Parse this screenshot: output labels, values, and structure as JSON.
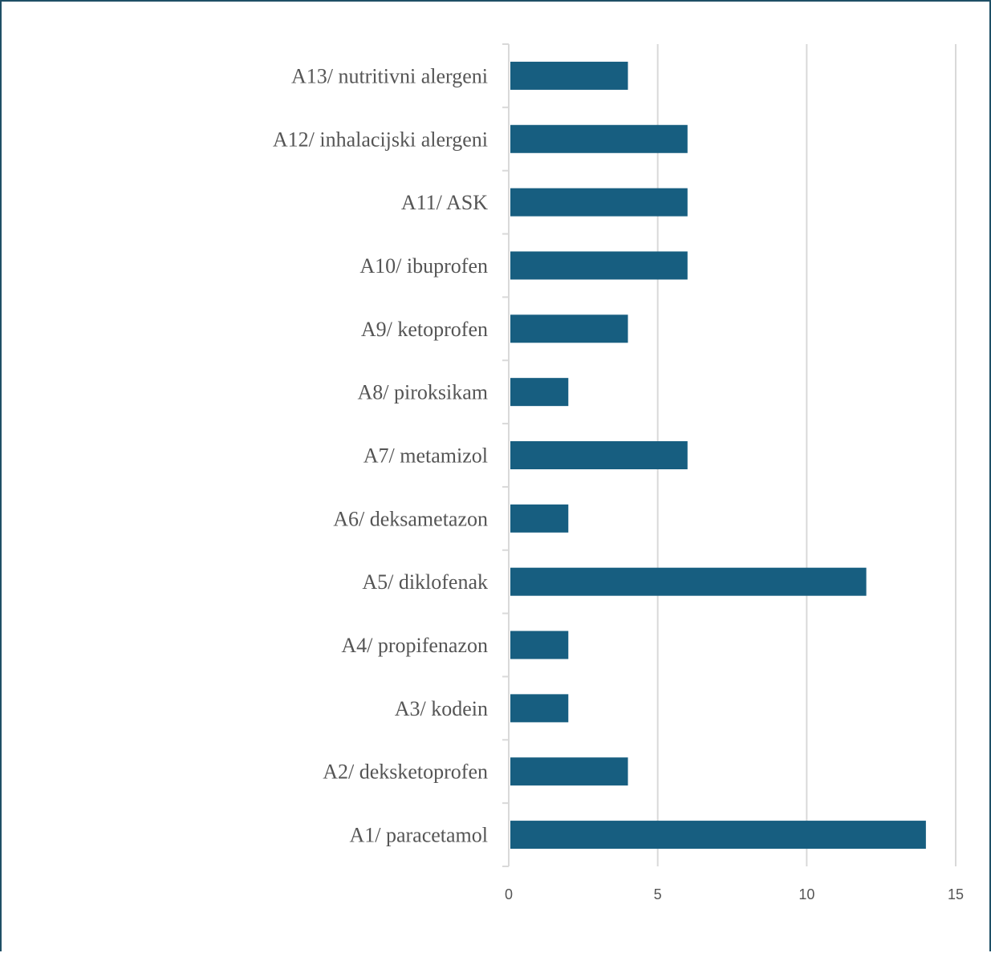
{
  "chart_data": {
    "type": "bar",
    "orientation": "horizontal",
    "title": "",
    "xlabel": "",
    "ylabel": "",
    "categories": [
      "A13/ nutritivni alergeni",
      "A12/ inhalacijski alergeni",
      "A11/ ASK",
      "A10/ ibuprofen",
      "A9/ ketoprofen",
      "A8/ piroksikam",
      "A7/ metamizol",
      "A6/ deksametazon",
      "A5/ diklofenak",
      "A4/ propifenazon",
      "A3/ kodein",
      "A2/ deksketoprofen",
      "A1/ paracetamol"
    ],
    "values": [
      4,
      6,
      6,
      6,
      4,
      2,
      6,
      2,
      12,
      2,
      2,
      4,
      14
    ],
    "xlim": [
      0,
      15
    ],
    "xticks": [
      "0",
      "5",
      "10",
      "15"
    ],
    "grid": true,
    "legend": "none",
    "bar_color": "#175e80",
    "grid_color": "#d9d9d9"
  }
}
